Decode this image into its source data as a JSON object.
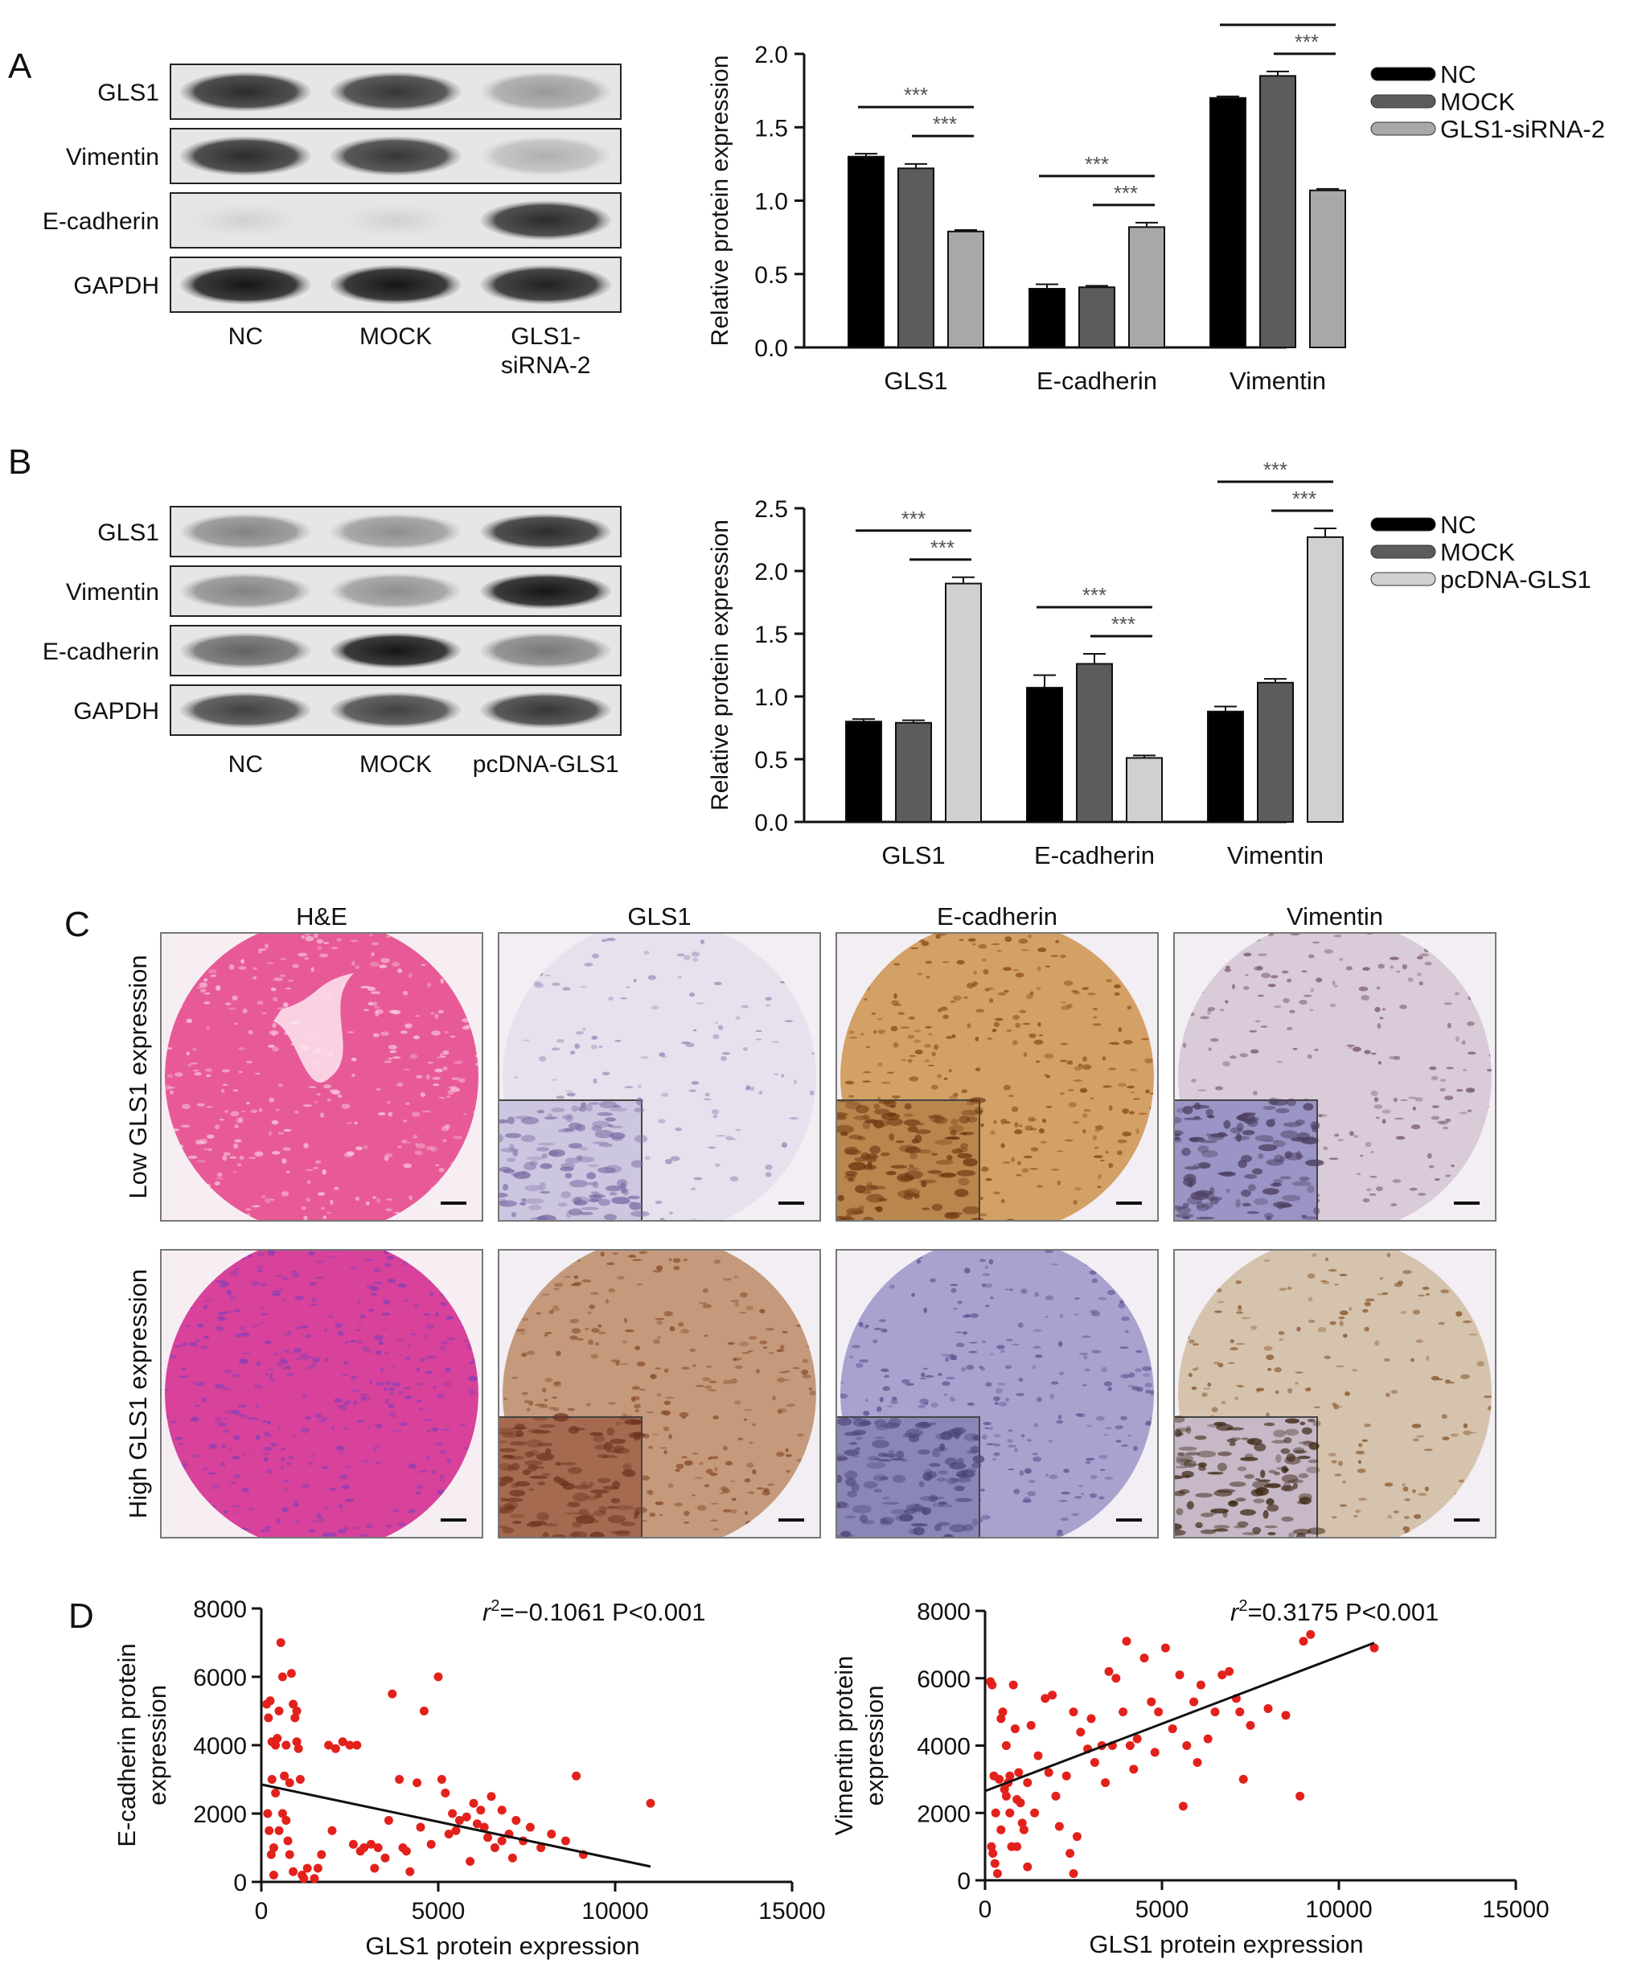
{
  "panel_labels": {
    "a": "A",
    "b": "B",
    "c": "C",
    "d": "D"
  },
  "colors": {
    "black": "#000000",
    "dark_gray": "#5c5c5c",
    "light_gray": "#a8a8a8",
    "lighter_gray": "#d0d0d0",
    "scatter_red": "#e3211c"
  },
  "blot_a": {
    "rows": [
      "GLS1",
      "Vimentin",
      "E-cadherin",
      "GAPDH"
    ],
    "lanes": [
      "NC",
      "MOCK",
      "GLS1-siRNA-2"
    ],
    "lane_label_lines": [
      [
        "NC"
      ],
      [
        "MOCK"
      ],
      [
        "GLS1-",
        "siRNA-2"
      ]
    ],
    "intensity": [
      [
        0.85,
        0.8,
        0.35
      ],
      [
        0.85,
        0.8,
        0.25
      ],
      [
        0.1,
        0.1,
        0.85
      ],
      [
        0.95,
        0.95,
        0.9
      ]
    ]
  },
  "blot_b": {
    "rows": [
      "GLS1",
      "Vimentin",
      "E-cadherin",
      "GAPDH"
    ],
    "lanes": [
      "NC",
      "MOCK",
      "pcDNA-GLS1"
    ],
    "lane_label_lines": [
      [
        "NC"
      ],
      [
        "MOCK"
      ],
      [
        "pcDNA-GLS1"
      ]
    ],
    "intensity": [
      [
        0.45,
        0.4,
        0.85
      ],
      [
        0.45,
        0.4,
        0.95
      ],
      [
        0.6,
        0.95,
        0.5
      ],
      [
        0.75,
        0.75,
        0.8
      ]
    ]
  },
  "chart_data": [
    {
      "id": "A-bar",
      "type": "bar",
      "categories": [
        "GLS1",
        "E-cadherin",
        "Vimentin"
      ],
      "series": [
        {
          "name": "NC",
          "values": [
            1.3,
            0.4,
            1.7
          ],
          "errors": [
            0.02,
            0.03,
            0.01
          ]
        },
        {
          "name": "MOCK",
          "values": [
            1.22,
            0.41,
            1.85
          ],
          "errors": [
            0.03,
            0.01,
            0.03
          ]
        },
        {
          "name": "GLS1-siRNA-2",
          "values": [
            0.79,
            0.82,
            1.07
          ],
          "errors": [
            0.01,
            0.03,
            0.01
          ]
        }
      ],
      "ylabel": "Relative protein expression",
      "ylim": [
        0,
        2.0
      ],
      "yticks": [
        "0.0",
        "0.5",
        "1.0",
        "1.5",
        "2.0"
      ],
      "significance": "***",
      "legend_position": "right"
    },
    {
      "id": "B-bar",
      "type": "bar",
      "categories": [
        "GLS1",
        "E-cadherin",
        "Vimentin"
      ],
      "series": [
        {
          "name": "NC",
          "values": [
            0.8,
            1.07,
            0.88
          ],
          "errors": [
            0.02,
            0.1,
            0.04
          ]
        },
        {
          "name": "MOCK",
          "values": [
            0.79,
            1.26,
            1.11
          ],
          "errors": [
            0.02,
            0.08,
            0.03
          ]
        },
        {
          "name": "pcDNA-GLS1",
          "values": [
            1.9,
            0.51,
            2.27
          ],
          "errors": [
            0.05,
            0.02,
            0.07
          ]
        }
      ],
      "ylabel": "Relative protein expression",
      "ylim": [
        0,
        2.5
      ],
      "yticks": [
        "0.0",
        "0.5",
        "1.0",
        "1.5",
        "2.0",
        "2.5"
      ],
      "significance": "***",
      "legend_position": "right"
    },
    {
      "id": "D-left",
      "type": "scatter",
      "xlabel": "GLS1 protein expression",
      "ylabel_lines": [
        "E-cadherin protein",
        "expression"
      ],
      "xlim": [
        0,
        15000
      ],
      "ylim": [
        0,
        8000
      ],
      "xticks": [
        "0",
        "5000",
        "10000",
        "15000"
      ],
      "yticks": [
        "0",
        "2000",
        "4000",
        "6000",
        "8000"
      ],
      "annotation": {
        "r_symbol": "r",
        "sup": "2",
        "text": "=−0.1061 P<0.001"
      },
      "regression_line": [
        [
          0,
          2850
        ],
        [
          11000,
          450
        ]
      ],
      "points": [
        [
          150,
          5200
        ],
        [
          200,
          4800
        ],
        [
          250,
          5300
        ],
        [
          300,
          3000
        ],
        [
          180,
          2000
        ],
        [
          220,
          1500
        ],
        [
          280,
          800
        ],
        [
          350,
          200
        ],
        [
          400,
          4000
        ],
        [
          450,
          4200
        ],
        [
          500,
          5000
        ],
        [
          550,
          7000
        ],
        [
          600,
          2000
        ],
        [
          650,
          3100
        ],
        [
          700,
          4000
        ],
        [
          750,
          1200
        ],
        [
          800,
          800
        ],
        [
          850,
          6100
        ],
        [
          900,
          5200
        ],
        [
          950,
          4800
        ],
        [
          1000,
          4100
        ],
        [
          1050,
          3900
        ],
        [
          1100,
          3000
        ],
        [
          1150,
          200
        ],
        [
          1200,
          100
        ],
        [
          1300,
          400
        ],
        [
          1500,
          100
        ],
        [
          1700,
          800
        ],
        [
          1900,
          4000
        ],
        [
          2100,
          3900
        ],
        [
          2300,
          4100
        ],
        [
          2500,
          4000
        ],
        [
          2700,
          4000
        ],
        [
          2900,
          1000
        ],
        [
          3100,
          1100
        ],
        [
          3300,
          1000
        ],
        [
          3500,
          700
        ],
        [
          3700,
          5500
        ],
        [
          3900,
          3000
        ],
        [
          4000,
          1000
        ],
        [
          4100,
          900
        ],
        [
          4200,
          300
        ],
        [
          4400,
          2900
        ],
        [
          4600,
          5000
        ],
        [
          4800,
          1100
        ],
        [
          5000,
          6000
        ],
        [
          5100,
          3000
        ],
        [
          5200,
          2600
        ],
        [
          5400,
          2000
        ],
        [
          5500,
          1500
        ],
        [
          5600,
          1800
        ],
        [
          5800,
          1900
        ],
        [
          6000,
          2300
        ],
        [
          6100,
          1700
        ],
        [
          6200,
          2100
        ],
        [
          6300,
          1600
        ],
        [
          6400,
          1300
        ],
        [
          6600,
          1000
        ],
        [
          6800,
          2100
        ],
        [
          7000,
          1400
        ],
        [
          7200,
          1800
        ],
        [
          7400,
          1200
        ],
        [
          7600,
          1600
        ],
        [
          7900,
          1000
        ],
        [
          8200,
          1400
        ],
        [
          8600,
          1200
        ],
        [
          8900,
          3100
        ],
        [
          9100,
          800
        ],
        [
          11000,
          2300
        ],
        [
          300,
          4100
        ],
        [
          600,
          6000
        ],
        [
          1000,
          5000
        ],
        [
          800,
          2900
        ],
        [
          500,
          1500
        ],
        [
          700,
          1800
        ],
        [
          2000,
          1500
        ],
        [
          2800,
          900
        ],
        [
          3600,
          1800
        ],
        [
          4500,
          1600
        ],
        [
          5300,
          1400
        ],
        [
          6500,
          2500
        ],
        [
          7100,
          700
        ],
        [
          5900,
          600
        ],
        [
          6800,
          1200
        ],
        [
          400,
          2600
        ],
        [
          350,
          1000
        ],
        [
          900,
          300
        ],
        [
          1600,
          400
        ],
        [
          2600,
          1100
        ],
        [
          3200,
          400
        ]
      ]
    },
    {
      "id": "D-right",
      "type": "scatter",
      "xlabel": "GLS1 protein expression",
      "ylabel_lines": [
        "Vimentin protein",
        "expression"
      ],
      "xlim": [
        0,
        15000
      ],
      "ylim": [
        0,
        8000
      ],
      "xticks": [
        "0",
        "5000",
        "10000",
        "15000"
      ],
      "yticks": [
        "0",
        "2000",
        "4000",
        "6000",
        "8000"
      ],
      "annotation": {
        "r_symbol": "r",
        "sup": "2",
        "text": "=0.3175 P<0.001"
      },
      "regression_line": [
        [
          0,
          2650
        ],
        [
          11000,
          7050
        ]
      ],
      "points": [
        [
          150,
          5900
        ],
        [
          200,
          5800
        ],
        [
          250,
          3100
        ],
        [
          300,
          2000
        ],
        [
          180,
          1000
        ],
        [
          220,
          800
        ],
        [
          280,
          500
        ],
        [
          350,
          200
        ],
        [
          400,
          3000
        ],
        [
          450,
          4800
        ],
        [
          500,
          5000
        ],
        [
          550,
          2700
        ],
        [
          600,
          4000
        ],
        [
          650,
          2900
        ],
        [
          700,
          3100
        ],
        [
          750,
          1000
        ],
        [
          800,
          5800
        ],
        [
          850,
          4500
        ],
        [
          900,
          2400
        ],
        [
          950,
          3200
        ],
        [
          1000,
          2300
        ],
        [
          1050,
          1700
        ],
        [
          1100,
          1500
        ],
        [
          1200,
          400
        ],
        [
          1300,
          4600
        ],
        [
          1500,
          3700
        ],
        [
          1700,
          5400
        ],
        [
          1900,
          5500
        ],
        [
          2100,
          1600
        ],
        [
          2300,
          3100
        ],
        [
          2500,
          5000
        ],
        [
          2700,
          4400
        ],
        [
          2900,
          3900
        ],
        [
          3100,
          3500
        ],
        [
          3300,
          4000
        ],
        [
          3500,
          6200
        ],
        [
          3700,
          6000
        ],
        [
          3900,
          5000
        ],
        [
          4000,
          7100
        ],
        [
          4100,
          4000
        ],
        [
          4300,
          4200
        ],
        [
          4500,
          6600
        ],
        [
          4700,
          5300
        ],
        [
          4900,
          5000
        ],
        [
          5100,
          6900
        ],
        [
          5300,
          4500
        ],
        [
          5500,
          6100
        ],
        [
          5700,
          4000
        ],
        [
          5900,
          5300
        ],
        [
          6100,
          5800
        ],
        [
          6300,
          4200
        ],
        [
          6500,
          5000
        ],
        [
          6700,
          6100
        ],
        [
          6900,
          6200
        ],
        [
          7100,
          5400
        ],
        [
          7300,
          3000
        ],
        [
          7500,
          4600
        ],
        [
          8000,
          5100
        ],
        [
          8500,
          4900
        ],
        [
          8900,
          2500
        ],
        [
          9000,
          7100
        ],
        [
          9200,
          7300
        ],
        [
          11000,
          6900
        ],
        [
          2000,
          2500
        ],
        [
          2600,
          1300
        ],
        [
          2400,
          800
        ],
        [
          2500,
          200
        ],
        [
          3400,
          2900
        ],
        [
          1800,
          3200
        ],
        [
          1400,
          2000
        ],
        [
          600,
          2500
        ],
        [
          900,
          1000
        ],
        [
          450,
          1500
        ],
        [
          3000,
          4800
        ],
        [
          4200,
          3300
        ],
        [
          5600,
          2200
        ],
        [
          6000,
          3500
        ],
        [
          7200,
          5000
        ],
        [
          4800,
          3800
        ],
        [
          3600,
          4000
        ],
        [
          1200,
          2900
        ],
        [
          700,
          2000
        ]
      ]
    }
  ],
  "ihc": {
    "columns": [
      "H&E",
      "GLS1",
      "E-cadherin",
      "Vimentin"
    ],
    "rows": [
      "Low GLS1 expression",
      "High GLS1 expression"
    ],
    "tiles": [
      [
        {
          "stain": "he",
          "bg": "#e85a97",
          "spot": "#f6c7dd",
          "dense": 0.55,
          "inset": false
        },
        {
          "stain": "ihc",
          "bg": "#e7e1ee",
          "spot": "#9c8bb8",
          "dense": 0.25,
          "inset": true,
          "inset_bg": "#cdc6e0",
          "inset_spot": "#7e6fa6"
        },
        {
          "stain": "ihc",
          "bg": "#d3a066",
          "spot": "#8a4a15",
          "dense": 0.55,
          "inset": true,
          "inset_bg": "#b9864e",
          "inset_spot": "#6e3510"
        },
        {
          "stain": "ihc",
          "bg": "#d9cbd8",
          "spot": "#7b5a6f",
          "dense": 0.35,
          "inset": true,
          "inset_bg": "#9a95c6",
          "inset_spot": "#4b3d5e"
        }
      ],
      [
        {
          "stain": "he",
          "bg": "#d8429b",
          "spot": "#8a3fb5",
          "dense": 0.65,
          "inset": false
        },
        {
          "stain": "ihc",
          "bg": "#c59a7c",
          "spot": "#8a4f2d",
          "dense": 0.5,
          "inset": true,
          "inset_bg": "#a56a50",
          "inset_spot": "#6b3420"
        },
        {
          "stain": "ihc",
          "bg": "#a9a2cf",
          "spot": "#5c5592",
          "dense": 0.45,
          "inset": true,
          "inset_bg": "#8a87b8",
          "inset_spot": "#4b4478"
        },
        {
          "stain": "ihc",
          "bg": "#d6c3ad",
          "spot": "#8a5a30",
          "dense": 0.35,
          "inset": true,
          "inset_bg": "#c7b8c8",
          "inset_spot": "#3a2510"
        }
      ]
    ]
  }
}
